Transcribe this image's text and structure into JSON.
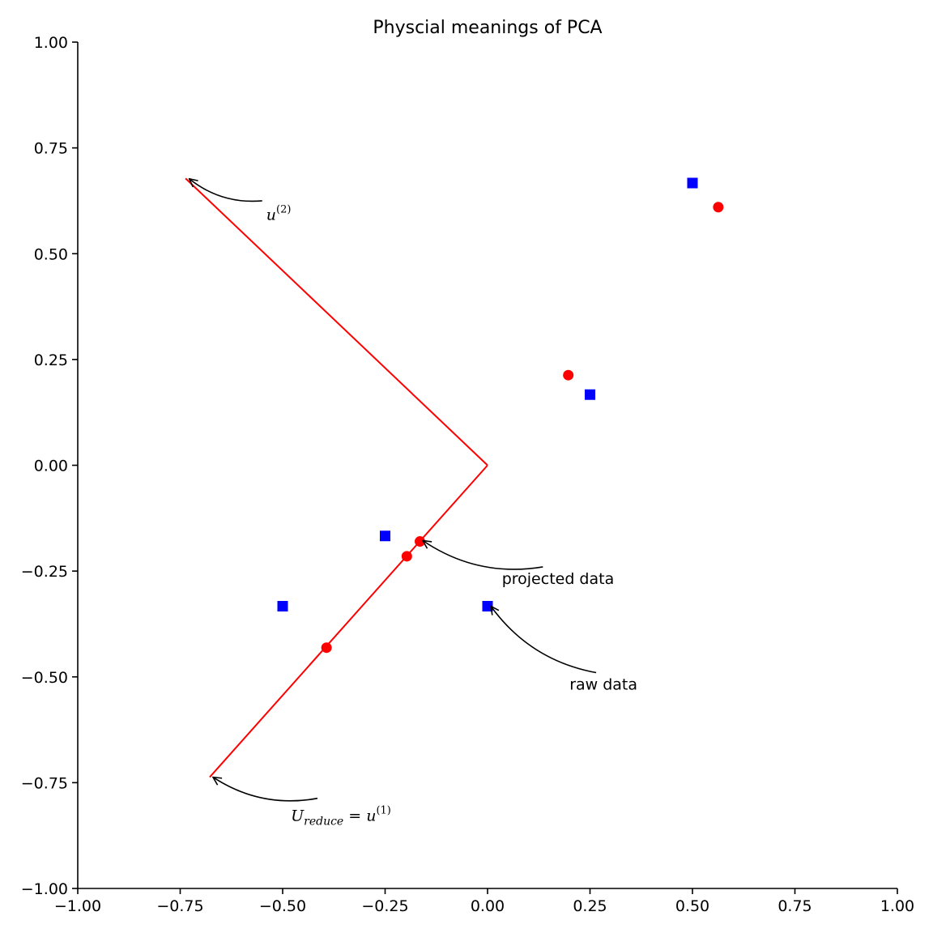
{
  "chart_data": {
    "type": "scatter",
    "title": "Physcial meanings of PCA",
    "xlabel": "",
    "ylabel": "",
    "xlim": [
      -1.0,
      1.0
    ],
    "ylim": [
      -1.0,
      1.0
    ],
    "grid": false,
    "x_ticks": [
      -1.0,
      -0.75,
      -0.5,
      -0.25,
      0.0,
      0.25,
      0.5,
      0.75,
      1.0
    ],
    "x_tick_labels": [
      "−1.00",
      "−0.75",
      "−0.50",
      "−0.25",
      "0.00",
      "0.25",
      "0.50",
      "0.75",
      "1.00"
    ],
    "y_ticks": [
      -1.0,
      -0.75,
      -0.5,
      -0.25,
      0.0,
      0.25,
      0.5,
      0.75,
      1.0
    ],
    "y_tick_labels": [
      "−1.00",
      "−0.75",
      "−0.50",
      "−0.25",
      "0.00",
      "0.25",
      "0.50",
      "0.75",
      "1.00"
    ],
    "series": [
      {
        "kind": "scatter",
        "marker": "square",
        "color": "#0000ff",
        "points": [
          {
            "x": -0.5,
            "y": -0.333
          },
          {
            "x": -0.25,
            "y": -0.167
          },
          {
            "x": 0.0,
            "y": -0.333
          },
          {
            "x": 0.25,
            "y": 0.167
          },
          {
            "x": 0.5,
            "y": 0.667
          }
        ]
      },
      {
        "kind": "scatter",
        "marker": "circle",
        "color": "#ff0000",
        "points": [
          {
            "x": -0.393,
            "y": -0.431
          },
          {
            "x": -0.197,
            "y": -0.215
          },
          {
            "x": -0.165,
            "y": -0.18
          },
          {
            "x": 0.197,
            "y": 0.213
          },
          {
            "x": 0.563,
            "y": 0.61
          }
        ]
      },
      {
        "kind": "line",
        "color": "#ff0000",
        "points": [
          {
            "x": 0.0,
            "y": 0.0
          },
          {
            "x": -0.678,
            "y": -0.737
          }
        ]
      },
      {
        "kind": "line",
        "color": "#ff0000",
        "points": [
          {
            "x": 0.0,
            "y": 0.0
          },
          {
            "x": -0.737,
            "y": 0.678
          }
        ]
      }
    ],
    "annotations": [
      {
        "id": "u2",
        "label_italic": "u",
        "label_sup": "(2)",
        "text_at": {
          "x": -0.54,
          "y": 0.58
        },
        "arrow_from": {
          "x": -0.55,
          "y": 0.625
        },
        "arrow_to": {
          "x": -0.728,
          "y": 0.677
        }
      },
      {
        "id": "projected",
        "text": "projected data",
        "text_at": {
          "x": 0.035,
          "y": -0.28
        },
        "arrow_from": {
          "x": 0.135,
          "y": -0.24
        },
        "arrow_to": {
          "x": -0.158,
          "y": -0.178
        }
      },
      {
        "id": "raw",
        "text": "raw data",
        "text_at": {
          "x": 0.2,
          "y": -0.53
        },
        "arrow_from": {
          "x": 0.265,
          "y": -0.49
        },
        "arrow_to": {
          "x": 0.008,
          "y": -0.333
        }
      },
      {
        "id": "ureduce",
        "label_main": "U",
        "label_sub": "reduce",
        "label_eq": " = ",
        "label_italic": "u",
        "label_sup": "(1)",
        "text_at": {
          "x": -0.48,
          "y": -0.84
        },
        "arrow_from": {
          "x": -0.415,
          "y": -0.787
        },
        "arrow_to": {
          "x": -0.67,
          "y": -0.737
        }
      }
    ]
  }
}
